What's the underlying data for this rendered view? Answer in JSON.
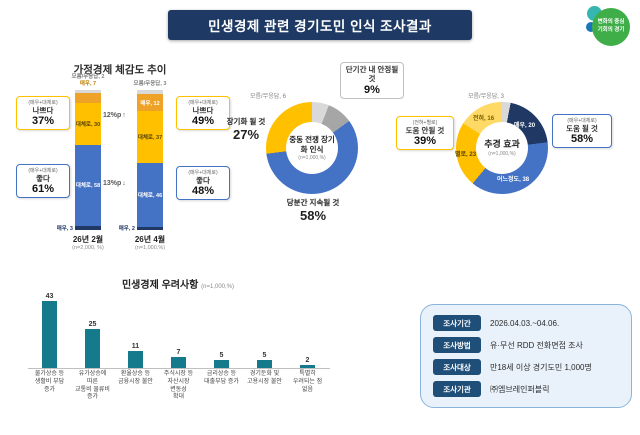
{
  "header": {
    "title": "민생경제 관련 경기도민 인식 조사결과"
  },
  "logo": {
    "line1": "변화의 중심",
    "line2": "기회의 경기"
  },
  "colors": {
    "navy": "#1e3a64",
    "blue": "#4472c4",
    "yellow": "#ffc000",
    "teal": "#147a8c",
    "gray": "#d9d9d9",
    "info_bg": "#e9f2fa"
  },
  "chart_data": [
    {
      "id": "household",
      "type": "bar",
      "stacked": true,
      "title": "가정경제 체감도 추이",
      "categories": [
        "26년 2월",
        "26년 4월"
      ],
      "category_notes": [
        "(n=2,000, %)",
        "(n=1,000,%)"
      ],
      "ylim": [
        0,
        100
      ],
      "series": [
        {
          "name": "모름/무응답",
          "short": "모름/무응답",
          "color": "#d9d9d9",
          "text_color": "#595959",
          "out_color": "#808080",
          "values": [
            2,
            3
          ]
        },
        {
          "name": "매우 나쁘다",
          "short": "매우",
          "color": "#efa228",
          "text_color": "#ffffff",
          "out_color": "#c07f00",
          "values": [
            7,
            12
          ]
        },
        {
          "name": "대체로 나쁘다",
          "short": "대체로",
          "color": "#ffc000",
          "text_color": "#594400",
          "out_color": "#a07c00",
          "values": [
            30,
            37
          ]
        },
        {
          "name": "대체로 좋다",
          "short": "대체로",
          "color": "#4472c4",
          "text_color": "#ffffff",
          "out_color": "#4472c4",
          "values": [
            58,
            46
          ]
        },
        {
          "name": "매우 좋다",
          "short": "매우",
          "color": "#1f3864",
          "text_color": "#ffffff",
          "out_color": "#1f3864",
          "values": [
            3,
            2
          ]
        }
      ],
      "callouts": [
        {
          "group": 0,
          "prefix": "(매우+대체로)",
          "label": "나쁘다",
          "value": "37%",
          "accent": "#ffc000"
        },
        {
          "group": 0,
          "prefix": "(매우+대체로)",
          "label": "좋다",
          "value": "61%",
          "accent": "#4472c4"
        },
        {
          "group": 1,
          "prefix": "(매우+대체로)",
          "label": "나쁘다",
          "value": "49%",
          "accent": "#ffc000"
        },
        {
          "group": 1,
          "prefix": "(매우+대체로)",
          "label": "좋다",
          "value": "48%",
          "accent": "#4472c4"
        }
      ],
      "deltas": [
        {
          "text": "12%p",
          "arrow": "↑",
          "direction": "up"
        },
        {
          "text": "13%p",
          "arrow": "↓",
          "direction": "down"
        }
      ]
    },
    {
      "id": "war_perception",
      "type": "pie",
      "title": "중동 전쟁 장기화 인식",
      "subtitle": "(n=1,000,%)",
      "slices": [
        {
          "label": "모름/무응답",
          "value": 6,
          "color": "#d9d9d9"
        },
        {
          "label": "단기간 내 안정될 것",
          "value": 9,
          "color": "#a6a6a6"
        },
        {
          "label": "당분간 지속될 것",
          "value": 58,
          "color": "#4472c4"
        },
        {
          "label": "장기화 될 것",
          "value": 27,
          "color": "#ffc000"
        }
      ]
    },
    {
      "id": "budget_effect",
      "type": "pie",
      "title": "추경 효과",
      "subtitle": "(n=1,000,%)",
      "slices": [
        {
          "label": "모름/무응답",
          "value": 3,
          "color": "#d9d9d9"
        },
        {
          "label": "매우",
          "value": 20,
          "color": "#1f3864"
        },
        {
          "label": "어느정도",
          "value": 38,
          "color": "#4472c4"
        },
        {
          "label": "별로",
          "value": 23,
          "color": "#ffc000"
        },
        {
          "label": "전혀",
          "value": 16,
          "color": "#ffd966"
        }
      ],
      "callouts": [
        {
          "prefix": "(전혀+별로)",
          "label": "도움 안될 것",
          "value": "39%",
          "accent": "#ffc000"
        },
        {
          "prefix": "(매우+대체로)",
          "label": "도움 될 것",
          "value": "58%",
          "accent": "#4472c4"
        }
      ]
    },
    {
      "id": "concerns",
      "type": "bar",
      "title": "민생경제 우려사항",
      "subtitle": "(n=1,000,%)",
      "bar_color": "#147a8c",
      "ylim": [
        0,
        50
      ],
      "categories": [
        [
          "물가상승 등",
          "생활비 부담",
          "증가"
        ],
        [
          "유가상승에",
          "따른",
          "교통비 물류비",
          "증가"
        ],
        [
          "환율상승 등",
          "금융시장 불안"
        ],
        [
          "주식시장 등",
          "자산시장",
          "변동성",
          "확대"
        ],
        [
          "금리상승 등",
          "대출부담 증가"
        ],
        [
          "경기둔화 및",
          "고용시장 불안"
        ],
        [
          "특별히",
          "우려되는 점",
          "없음"
        ]
      ],
      "values": [
        43,
        25,
        11,
        7,
        5,
        5,
        2
      ]
    }
  ],
  "info_box": {
    "rows": [
      {
        "label": "조사기간",
        "value": "2026.04.03.~04.06."
      },
      {
        "label": "조사방법",
        "value": "유·무선 RDD 전화면접 조사"
      },
      {
        "label": "조사대상",
        "value": "만18세 이상 경기도민 1,000명"
      },
      {
        "label": "조사기관",
        "value": "㈜엠브레인퍼블릭"
      }
    ]
  }
}
